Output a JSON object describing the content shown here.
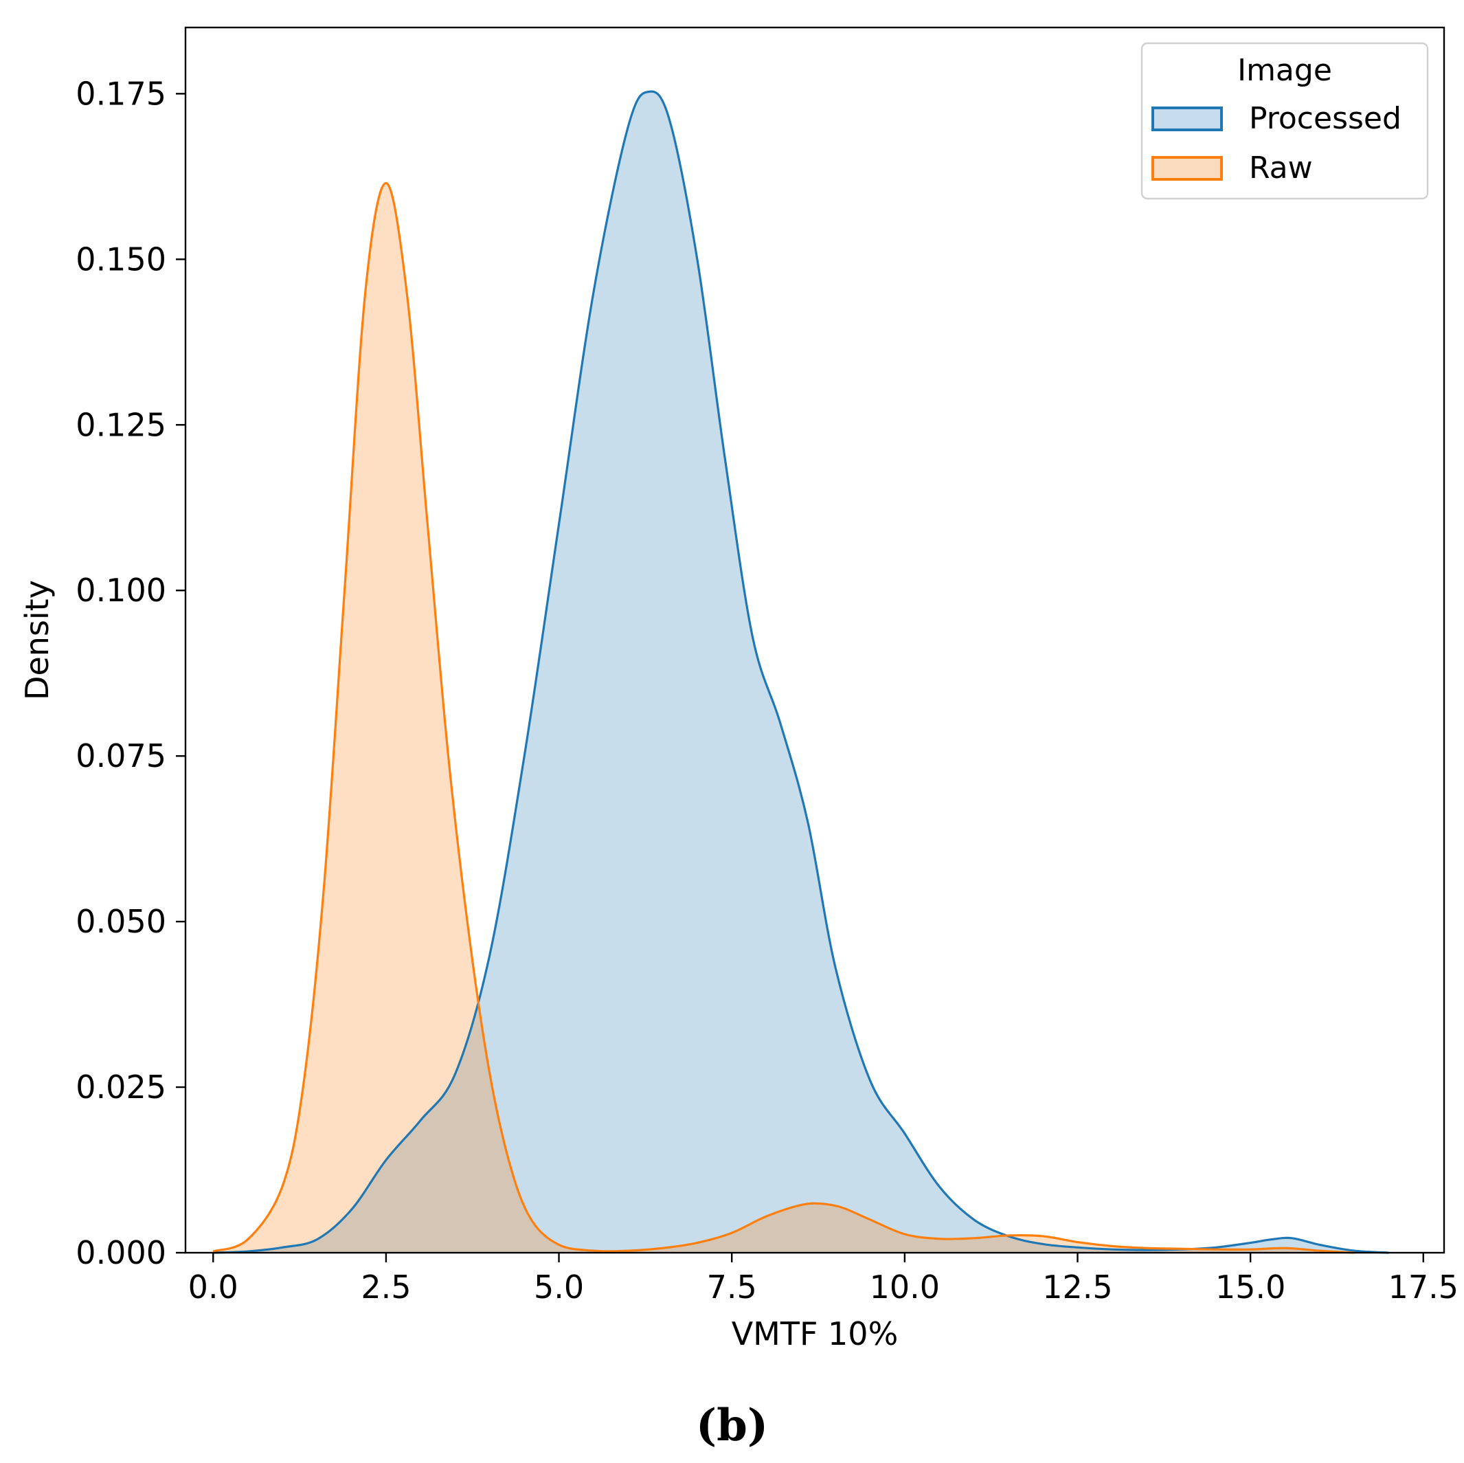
{
  "chart_data": {
    "type": "area",
    "title": "",
    "xlabel": "VMTF 10%",
    "ylabel": "Density",
    "xlim": [
      -0.4,
      17.8
    ],
    "ylim": [
      0,
      0.185
    ],
    "xticks": [
      0.0,
      2.5,
      5.0,
      7.5,
      10.0,
      12.5,
      15.0,
      17.5
    ],
    "xtick_labels": [
      "0.0",
      "2.5",
      "5.0",
      "7.5",
      "10.0",
      "12.5",
      "15.0",
      "17.5"
    ],
    "yticks": [
      0.0,
      0.025,
      0.05,
      0.075,
      0.1,
      0.125,
      0.15,
      0.175
    ],
    "ytick_labels": [
      "0.000",
      "0.025",
      "0.050",
      "0.075",
      "0.100",
      "0.125",
      "0.150",
      "0.175"
    ],
    "grid": false,
    "legend": {
      "title": "Image",
      "placement": "upper right"
    },
    "series": [
      {
        "name": "Processed",
        "color": "#1f77b4",
        "fill": "#c6dbec",
        "x": [
          0.0,
          0.5,
          1.0,
          1.5,
          2.0,
          2.5,
          3.0,
          3.5,
          4.0,
          4.5,
          5.0,
          5.5,
          6.0,
          6.3,
          6.6,
          7.0,
          7.4,
          7.8,
          8.2,
          8.6,
          9.0,
          9.5,
          10.0,
          10.5,
          11.0,
          11.5,
          12.0,
          12.5,
          13.0,
          13.5,
          14.0,
          14.5,
          15.0,
          15.3,
          15.6,
          16.0,
          16.5,
          17.0
        ],
        "y": [
          0.0,
          0.0002,
          0.0008,
          0.002,
          0.0065,
          0.014,
          0.02,
          0.027,
          0.045,
          0.075,
          0.11,
          0.145,
          0.17,
          0.1753,
          0.171,
          0.15,
          0.12,
          0.093,
          0.08,
          0.065,
          0.043,
          0.026,
          0.018,
          0.01,
          0.005,
          0.0025,
          0.0013,
          0.0008,
          0.0005,
          0.0004,
          0.0005,
          0.0008,
          0.0015,
          0.002,
          0.0022,
          0.0012,
          0.0003,
          0.0
        ]
      },
      {
        "name": "Raw",
        "color": "#ff7f0e",
        "fill": "#fbdbbd",
        "x": [
          0.0,
          0.5,
          1.0,
          1.3,
          1.6,
          1.9,
          2.2,
          2.5,
          2.8,
          3.1,
          3.4,
          3.7,
          4.0,
          4.3,
          4.6,
          5.0,
          5.5,
          6.0,
          6.5,
          7.0,
          7.5,
          8.0,
          8.5,
          8.8,
          9.1,
          9.5,
          10.0,
          10.5,
          11.0,
          11.5,
          12.0,
          12.5,
          13.0,
          13.5,
          14.0,
          14.5,
          15.0,
          15.5,
          16.0,
          16.5
        ],
        "y": [
          0.0002,
          0.002,
          0.01,
          0.025,
          0.055,
          0.1,
          0.145,
          0.1615,
          0.145,
          0.11,
          0.075,
          0.048,
          0.027,
          0.013,
          0.005,
          0.0012,
          0.0003,
          0.0003,
          0.0007,
          0.0015,
          0.003,
          0.0055,
          0.0072,
          0.0074,
          0.0068,
          0.005,
          0.0028,
          0.0021,
          0.0022,
          0.0026,
          0.0025,
          0.0016,
          0.001,
          0.0007,
          0.0006,
          0.0005,
          0.0005,
          0.0007,
          0.0003,
          0.0
        ]
      }
    ]
  },
  "caption": "(b)"
}
